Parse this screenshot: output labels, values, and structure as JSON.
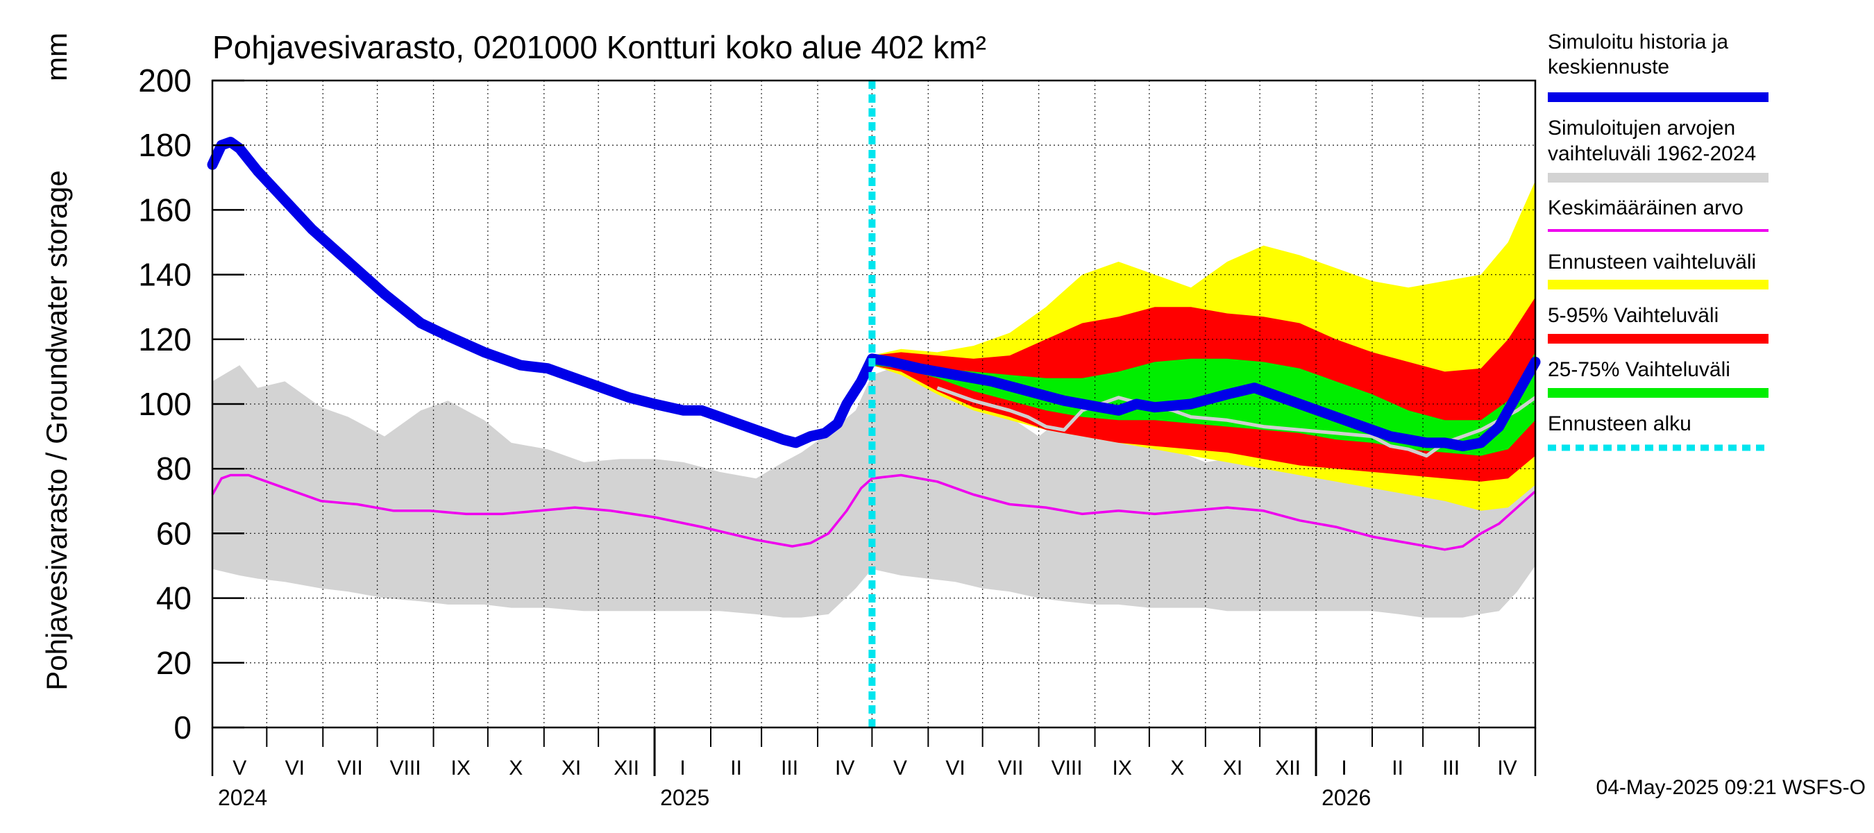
{
  "chart_data": {
    "type": "area",
    "title": "Pohjavesivarasto, 0201000 Kontturi koko alue 402 km²",
    "ylabel": "Pohjavesivarasto / Groundwater storage",
    "yunit": "mm",
    "ylim": [
      0,
      200
    ],
    "yticks": [
      0,
      20,
      40,
      60,
      80,
      100,
      120,
      140,
      160,
      180,
      200
    ],
    "xlim_days": [
      0,
      730
    ],
    "x_unit": "days since 2024-04-01",
    "months": [
      {
        "label": "V",
        "start": 0
      },
      {
        "label": "VI",
        "start": 30
      },
      {
        "label": "VII",
        "start": 61
      },
      {
        "label": "VIII",
        "start": 91
      },
      {
        "label": "IX",
        "start": 122
      },
      {
        "label": "X",
        "start": 152
      },
      {
        "label": "XI",
        "start": 183
      },
      {
        "label": "XII",
        "start": 213
      },
      {
        "label": "I",
        "start": 244
      },
      {
        "label": "II",
        "start": 275
      },
      {
        "label": "III",
        "start": 303
      },
      {
        "label": "IV",
        "start": 334
      },
      {
        "label": "V",
        "start": 364
      },
      {
        "label": "VI",
        "start": 395
      },
      {
        "label": "VII",
        "start": 425
      },
      {
        "label": "VIII",
        "start": 456
      },
      {
        "label": "IX",
        "start": 487
      },
      {
        "label": "X",
        "start": 517
      },
      {
        "label": "XI",
        "start": 548
      },
      {
        "label": "XII",
        "start": 578
      },
      {
        "label": "I",
        "start": 609
      },
      {
        "label": "II",
        "start": 640
      },
      {
        "label": "III",
        "start": 668
      },
      {
        "label": "IV",
        "start": 699
      }
    ],
    "year_ticks": [
      244,
      609
    ],
    "years": [
      {
        "label": "2024",
        "day": 0
      },
      {
        "label": "2025",
        "day": 244
      },
      {
        "label": "2026",
        "day": 609
      }
    ],
    "forecast_start_day": 364,
    "history_range": {
      "x": [
        0,
        15,
        25,
        40,
        60,
        75,
        95,
        115,
        130,
        150,
        165,
        185,
        205,
        225,
        244,
        260,
        280,
        300,
        315,
        325,
        340,
        355,
        364,
        380,
        395,
        410,
        425,
        440,
        456,
        470,
        487,
        500,
        517,
        530,
        548,
        560,
        578,
        595,
        609,
        625,
        640,
        655,
        668,
        690,
        699,
        710,
        720,
        730
      ],
      "lower": [
        49,
        47,
        46,
        45,
        43,
        42,
        40,
        39,
        38,
        38,
        37,
        37,
        36,
        36,
        36,
        36,
        36,
        35,
        34,
        34,
        35,
        43,
        49,
        47,
        46,
        45,
        43,
        42,
        40,
        39,
        38,
        38,
        37,
        37,
        37,
        36,
        36,
        36,
        36,
        36,
        36,
        35,
        34,
        34,
        35,
        36,
        42,
        50
      ],
      "upper": [
        107,
        112,
        105,
        107,
        99,
        96,
        90,
        98,
        101,
        95,
        88,
        86,
        82,
        83,
        83,
        82,
        79,
        77,
        82,
        85,
        91,
        98,
        109,
        112,
        105,
        105,
        99,
        96,
        90,
        96,
        100,
        95,
        88,
        86,
        82,
        83,
        83,
        82,
        79,
        78,
        77,
        76,
        82,
        85,
        91,
        96,
        104,
        109
      ]
    },
    "forecast_bands": {
      "x": [
        364,
        380,
        400,
        420,
        440,
        460,
        480,
        500,
        520,
        540,
        560,
        580,
        600,
        620,
        640,
        660,
        680,
        700,
        715,
        730
      ],
      "yellow_min": [
        112,
        109,
        103,
        98,
        95,
        92,
        90,
        88,
        86,
        84,
        82,
        80,
        78,
        76,
        74,
        72,
        70,
        67,
        68,
        75
      ],
      "yellow_max": [
        115,
        117,
        116,
        118,
        122,
        130,
        140,
        144,
        140,
        136,
        144,
        149,
        146,
        142,
        138,
        136,
        138,
        140,
        150,
        169
      ],
      "red_min": [
        112,
        110,
        104,
        99,
        96,
        92,
        90,
        88,
        87,
        86,
        85,
        83,
        81,
        80,
        79,
        78,
        77,
        76,
        77,
        84
      ],
      "red_max": [
        115,
        116,
        115,
        114,
        115,
        120,
        125,
        127,
        130,
        130,
        128,
        127,
        125,
        120,
        116,
        113,
        110,
        111,
        120,
        133
      ],
      "green_min": [
        112,
        111,
        108,
        104,
        101,
        98,
        96,
        95,
        95,
        94,
        93,
        92,
        91,
        89,
        88,
        86,
        85,
        84,
        86,
        95
      ],
      "green_max": [
        114,
        113,
        111,
        110,
        109,
        108,
        108,
        110,
        113,
        114,
        114,
        113,
        111,
        107,
        103,
        98,
        95,
        95,
        101,
        116
      ]
    },
    "sim_history": {
      "x": [
        0,
        5,
        10,
        15,
        25,
        40,
        55,
        75,
        95,
        115,
        130,
        150,
        170,
        185,
        200,
        215,
        230,
        244,
        260,
        270,
        280,
        290,
        300,
        310,
        315,
        322,
        330,
        338,
        345,
        350,
        358,
        364,
        375,
        390,
        410,
        430,
        450,
        470,
        480,
        490,
        500,
        510,
        520,
        540,
        560,
        575,
        590,
        610,
        630,
        650,
        670,
        680,
        690,
        700,
        710,
        720,
        730
      ],
      "y": [
        174,
        180,
        181,
        179,
        172,
        163,
        154,
        144,
        134,
        125,
        121,
        116,
        112,
        111,
        108,
        105,
        102,
        100,
        98,
        98,
        96,
        94,
        92,
        90,
        89,
        88,
        90,
        91,
        94,
        100,
        107,
        114,
        113,
        111,
        109,
        107,
        104,
        101,
        100,
        99,
        98,
        100,
        99,
        100,
        103,
        105,
        102,
        98,
        94,
        90,
        88,
        88,
        87,
        88,
        93,
        103,
        113
      ]
    },
    "mean": {
      "x": [
        0,
        5,
        10,
        20,
        40,
        60,
        80,
        100,
        120,
        140,
        160,
        180,
        200,
        220,
        244,
        270,
        300,
        320,
        330,
        340,
        350,
        358,
        364,
        380,
        400,
        420,
        440,
        460,
        480,
        500,
        520,
        540,
        560,
        580,
        600,
        620,
        640,
        660,
        680,
        690,
        700,
        710,
        720,
        730
      ],
      "y": [
        72,
        77,
        78,
        78,
        74,
        70,
        69,
        67,
        67,
        66,
        66,
        67,
        68,
        67,
        65,
        62,
        58,
        56,
        57,
        60,
        67,
        74,
        77,
        78,
        76,
        72,
        69,
        68,
        66,
        67,
        66,
        67,
        68,
        67,
        64,
        62,
        59,
        57,
        55,
        56,
        60,
        63,
        68,
        73
      ]
    },
    "gray_line": {
      "x": [
        400,
        420,
        440,
        450,
        460,
        470,
        480,
        500,
        520,
        530,
        540,
        560,
        580,
        600,
        620,
        640,
        650,
        660,
        670,
        680,
        700,
        720,
        730
      ],
      "y": [
        105,
        101,
        98,
        96,
        93,
        92,
        98,
        102,
        99,
        98,
        96,
        95,
        93,
        92,
        91,
        90,
        87,
        86,
        84,
        88,
        92,
        98,
        102
      ]
    },
    "legend": [
      {
        "label_lines": [
          "Simuloitu historia ja",
          "keskiennuste"
        ],
        "color": "#0000e8"
      },
      {
        "label_lines": [
          "Simuloitujen arvojen",
          "vaihteluväli 1962-2024"
        ],
        "color": "#d3d3d3"
      },
      {
        "label_lines": [
          "Keskimääräinen arvo"
        ],
        "color": "#ee00ee"
      },
      {
        "label_lines": [
          "Ennusteen vaihteluväli"
        ],
        "color": "#ffff00"
      },
      {
        "label_lines": [
          "5-95% Vaihteluväli"
        ],
        "color": "#ff0000"
      },
      {
        "label_lines": [
          "25-75% Vaihteluväli"
        ],
        "color": "#00ee00"
      },
      {
        "label_lines": [
          "Ennusteen alku"
        ],
        "color": "#00e5ee"
      }
    ],
    "timestamp": "04-May-2025 09:21 WSFS-O"
  }
}
